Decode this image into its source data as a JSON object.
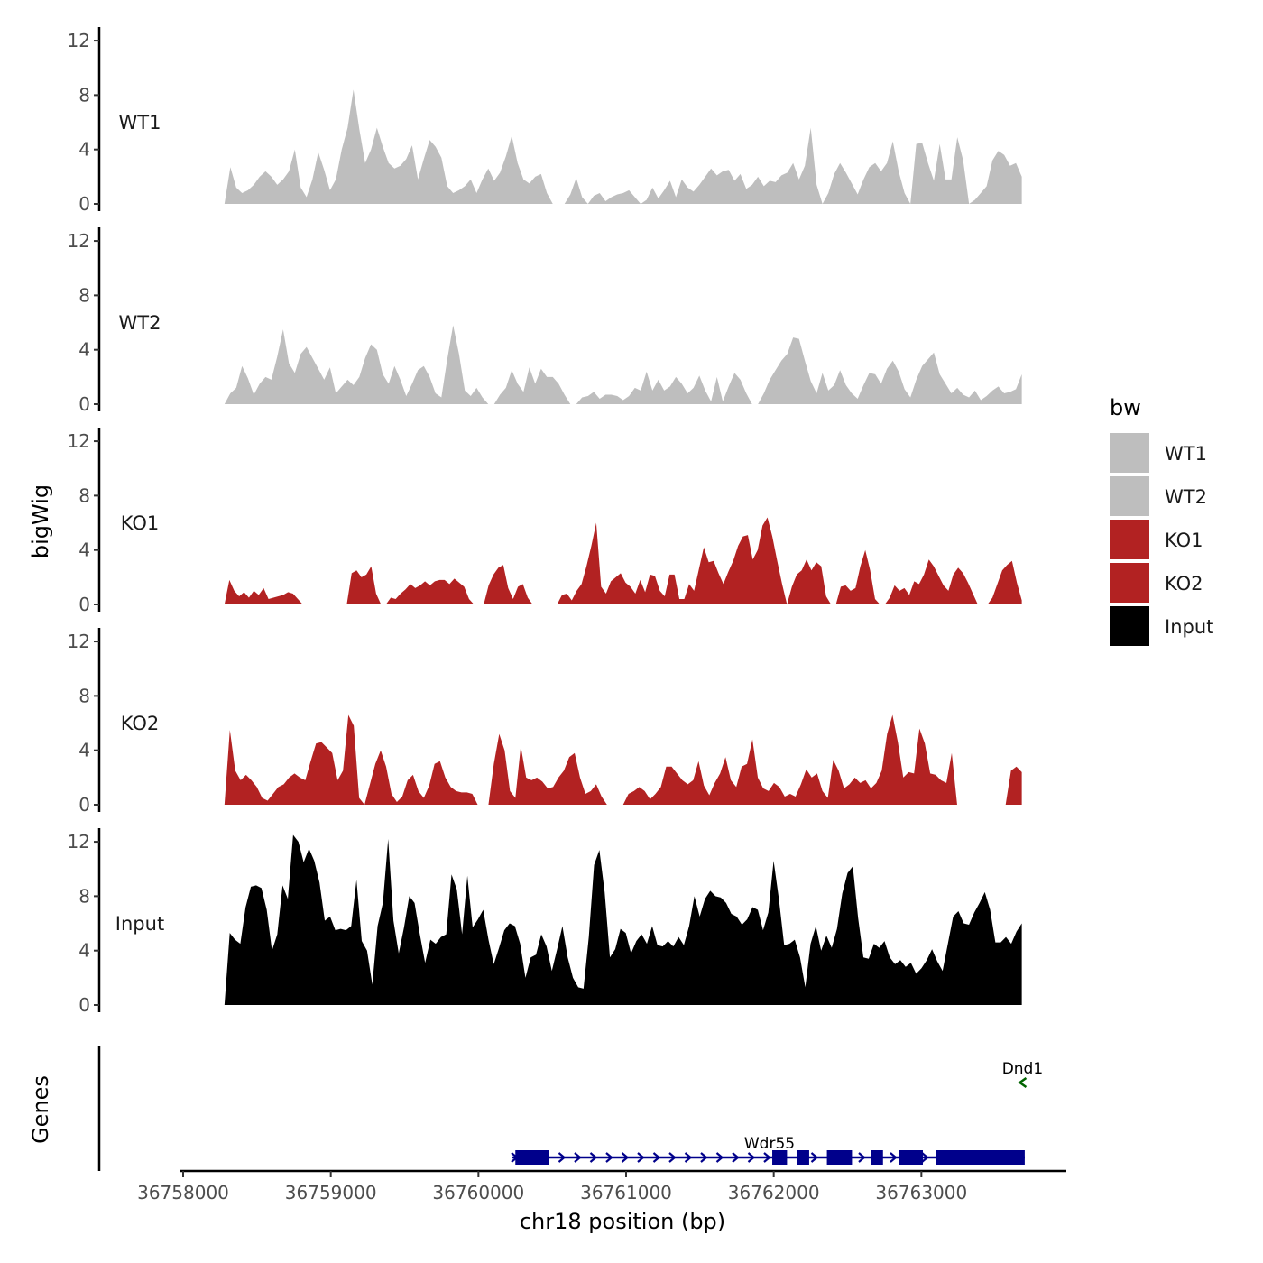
{
  "chart_data": {
    "type": "area",
    "title": "",
    "ylabel": "bigWig",
    "xlabel": "chr18 position (bp)",
    "xlim": [
      36758000,
      36764000
    ],
    "ylim": [
      0,
      13
    ],
    "y_ticks": [
      0,
      4,
      8,
      12
    ],
    "x_ticks": [
      36758000,
      36759000,
      36760000,
      36761000,
      36762000,
      36763000
    ],
    "x_tick_labels": [
      "36758000",
      "36759000",
      "36760000",
      "36761000",
      "36762000",
      "36763000"
    ],
    "x_range_data": [
      36758280,
      36763680
    ],
    "legend": {
      "title": "bw",
      "position": "right",
      "entries": [
        {
          "label": "WT1",
          "color": "#BEBEBE"
        },
        {
          "label": "WT2",
          "color": "#BEBEBE"
        },
        {
          "label": "KO1",
          "color": "#B22222"
        },
        {
          "label": "KO2",
          "color": "#B22222"
        },
        {
          "label": "Input",
          "color": "#000000"
        }
      ]
    },
    "series": [
      {
        "name": "WT1",
        "color": "#BEBEBE",
        "values": [
          0,
          2.7,
          1.2,
          0.8,
          1.0,
          1.4,
          2.0,
          2.4,
          2.0,
          1.4,
          1.8,
          2.4,
          4.0,
          1.2,
          0.5,
          1.8,
          3.8,
          2.5,
          1.0,
          1.8,
          4.0,
          5.6,
          8.4,
          5.5,
          3.0,
          4.0,
          5.6,
          4.2,
          3.0,
          2.6,
          2.8,
          3.3,
          4.3,
          1.8,
          3.3,
          4.7,
          4.2,
          3.4,
          1.3,
          0.8,
          1.0,
          1.3,
          1.8,
          0.8,
          1.8,
          2.6,
          1.7,
          2.3,
          3.5,
          5.0,
          3.0,
          1.8,
          1.5,
          2.0,
          2.2,
          0.8,
          0,
          0,
          0,
          0.7,
          1.9,
          0.5,
          0,
          0.6,
          0.8,
          0.2,
          0.5,
          0.7,
          0.8,
          1.0,
          0.5,
          0,
          0.3,
          1.2,
          0.4,
          1.0,
          1.7,
          0.5,
          1.8,
          1.2,
          0.9,
          1.4,
          2.0,
          2.6,
          2.1,
          2.4,
          2.5,
          1.7,
          2.2,
          1.1,
          1.4,
          2.0,
          1.3,
          1.7,
          1.6,
          2.1,
          2.3,
          3.0,
          1.8,
          2.8,
          5.6,
          1.4,
          0,
          0.8,
          2.2,
          3.0,
          2.3,
          1.5,
          0.7,
          1.8,
          2.7,
          3.0,
          2.4,
          3.0,
          4.6,
          2.4,
          0.8,
          0,
          4.4,
          4.5,
          3.0,
          1.7,
          4.4,
          1.8,
          1.8,
          4.9,
          3.2,
          0,
          0.3,
          0.8,
          1.3,
          3.2,
          3.9,
          3.6,
          2.8,
          3.0,
          2.0
        ]
      },
      {
        "name": "WT2",
        "color": "#BEBEBE",
        "values": [
          0,
          0.8,
          1.2,
          2.8,
          1.9,
          0.7,
          1.5,
          2.0,
          1.8,
          3.5,
          5.5,
          3.0,
          2.3,
          3.7,
          4.2,
          3.4,
          2.6,
          1.8,
          2.7,
          0.8,
          1.3,
          1.8,
          1.4,
          2.0,
          3.4,
          4.4,
          4.0,
          2.2,
          1.5,
          2.8,
          1.8,
          0.6,
          1.5,
          2.5,
          2.8,
          2.0,
          0.8,
          0.5,
          3.3,
          5.8,
          3.7,
          1.0,
          0.6,
          1.2,
          0.5,
          0,
          0,
          0.7,
          1.2,
          2.5,
          1.5,
          0.9,
          2.7,
          1.5,
          2.6,
          2.0,
          2.0,
          1.5,
          0.7,
          0,
          0,
          0.5,
          0.6,
          0.9,
          0.4,
          0.7,
          0.7,
          0.6,
          0.3,
          0.6,
          1.2,
          1.0,
          2.4,
          1.0,
          1.8,
          1.0,
          1.3,
          2.0,
          1.5,
          0.8,
          1.2,
          2.1,
          1.0,
          0.2,
          2.0,
          0.2,
          1.3,
          2.3,
          1.8,
          0.8,
          0,
          0,
          0.8,
          1.8,
          2.5,
          3.2,
          3.7,
          4.9,
          4.8,
          3.2,
          1.7,
          0.8,
          2.3,
          1.0,
          1.4,
          2.5,
          1.4,
          0.8,
          0.4,
          1.4,
          2.3,
          2.2,
          1.5,
          2.6,
          3.2,
          2.4,
          1.1,
          0.5,
          1.8,
          2.8,
          3.3,
          3.8,
          2.2,
          1.5,
          0.8,
          1.2,
          0.7,
          0.5,
          1.0,
          0.3,
          0.6,
          1.0,
          1.3,
          0.8,
          0.9,
          1.1,
          2.2
        ]
      },
      {
        "name": "KO1",
        "color": "#B22222",
        "values": [
          0,
          1.8,
          1.0,
          0.6,
          0.9,
          0.5,
          1.0,
          0.7,
          1.2,
          0.4,
          0.5,
          0.6,
          0.7,
          0.9,
          0.8,
          0.4,
          0,
          0,
          0,
          0,
          0,
          0,
          0,
          0,
          0,
          0,
          2.3,
          2.5,
          2.0,
          2.2,
          2.8,
          0.8,
          0,
          0,
          0.5,
          0.4,
          0.8,
          1.1,
          1.5,
          1.2,
          1.4,
          1.7,
          1.4,
          1.7,
          1.8,
          1.8,
          1.5,
          1.9,
          1.6,
          1.3,
          0.4,
          0,
          0,
          0,
          1.4,
          2.2,
          2.7,
          2.9,
          1.2,
          0.4,
          1.3,
          1.5,
          0.5,
          0,
          0,
          0,
          0,
          0,
          0,
          0.7,
          0.8,
          0.3,
          1.0,
          1.5,
          2.8,
          4.3,
          6.0,
          1.3,
          0.8,
          1.7,
          2.0,
          2.3,
          1.6,
          1.3,
          0.8,
          1.8,
          0.9,
          2.2,
          2.1,
          1.0,
          0.6,
          2.2,
          2.2,
          0.4,
          0.4,
          1.5,
          1.0,
          2.6,
          4.2,
          3.1,
          3.2,
          2.3,
          1.5,
          2.4,
          3.2,
          4.3,
          5.0,
          5.1,
          3.3,
          4.0,
          5.8,
          6.4,
          5.0,
          3.2,
          1.5,
          0,
          1.3,
          2.2,
          2.5,
          3.3,
          2.5,
          3.1,
          2.8,
          0.6,
          0,
          0,
          1.3,
          1.4,
          1.0,
          1.2,
          2.8,
          4.0,
          2.5,
          0.4,
          0,
          0,
          0.5,
          1.4,
          1.0,
          1.2,
          0.7,
          1.7,
          1.5,
          2.2,
          3.3,
          2.8,
          2.1,
          1.4,
          1.0,
          2.2,
          2.7,
          2.3,
          1.6,
          0.8,
          0,
          0,
          0,
          0.5,
          1.5,
          2.5,
          2.9,
          3.2,
          1.6,
          0.3
        ]
      },
      {
        "name": "KO2",
        "color": "#B22222",
        "values": [
          0,
          5.5,
          2.5,
          1.8,
          2.2,
          1.8,
          1.3,
          0.5,
          0.3,
          0.8,
          1.3,
          1.5,
          2.0,
          2.3,
          2.0,
          1.8,
          3.2,
          4.5,
          4.6,
          4.2,
          3.8,
          1.8,
          2.5,
          6.6,
          5.8,
          0.5,
          0,
          1.5,
          3.0,
          4.0,
          2.8,
          0.8,
          0.2,
          0.6,
          1.8,
          2.2,
          1.0,
          0.5,
          1.4,
          3.0,
          3.2,
          2.0,
          1.3,
          1.0,
          0.9,
          0.9,
          0.8,
          0,
          0,
          0,
          3.0,
          5.2,
          4.0,
          1.0,
          0.5,
          4.3,
          2.0,
          1.8,
          2.0,
          1.7,
          1.2,
          1.3,
          2.0,
          2.5,
          3.5,
          3.8,
          2.0,
          0.8,
          1.0,
          1.5,
          0.6,
          0,
          0,
          0,
          0,
          0.8,
          1.0,
          1.3,
          1.0,
          0.4,
          0.8,
          1.3,
          2.8,
          2.8,
          2.3,
          1.8,
          1.5,
          1.8,
          3.2,
          1.4,
          0.7,
          1.6,
          2.3,
          3.5,
          1.8,
          1.3,
          2.8,
          3.0,
          4.8,
          2.0,
          1.2,
          1.0,
          1.6,
          1.3,
          0.6,
          0.8,
          0.6,
          1.5,
          2.6,
          2.0,
          2.3,
          1.0,
          0.5,
          3.3,
          2.5,
          1.2,
          1.5,
          2.0,
          1.6,
          1.8,
          1.2,
          1.6,
          2.5,
          5.2,
          6.6,
          4.6,
          2.0,
          2.4,
          2.3,
          5.6,
          4.5,
          2.3,
          2.2,
          1.8,
          1.6,
          3.8,
          0,
          0,
          0,
          0,
          0,
          0,
          0,
          0,
          0,
          0,
          2.5,
          2.8,
          2.4
        ]
      },
      {
        "name": "Input",
        "color": "#000000",
        "values": [
          0,
          5.3,
          4.8,
          4.5,
          7.2,
          8.7,
          8.8,
          8.6,
          7.0,
          4.0,
          5.2,
          8.8,
          7.8,
          12.5,
          12.0,
          10.5,
          11.5,
          10.6,
          9.0,
          6.2,
          6.5,
          5.5,
          5.6,
          5.5,
          5.8,
          9.2,
          4.7,
          4.0,
          1.5,
          5.8,
          7.5,
          12.2,
          6.2,
          3.8,
          5.7,
          8.0,
          7.5,
          5.2,
          3.1,
          4.8,
          4.5,
          5.0,
          5.2,
          9.6,
          8.5,
          5.2,
          9.5,
          5.7,
          6.3,
          7.0,
          4.8,
          3.0,
          4.2,
          5.5,
          6.0,
          5.8,
          4.5,
          2.0,
          3.5,
          3.7,
          5.2,
          4.3,
          2.5,
          4.1,
          5.8,
          3.5,
          2.0,
          1.3,
          1.2,
          5.0,
          10.3,
          11.4,
          8.3,
          3.5,
          4.1,
          5.6,
          5.3,
          3.8,
          4.7,
          5.2,
          4.5,
          5.8,
          4.4,
          4.3,
          4.7,
          4.3,
          5.0,
          4.4,
          5.8,
          8.0,
          6.5,
          7.8,
          8.4,
          8.0,
          7.9,
          7.5,
          6.7,
          6.5,
          5.9,
          6.3,
          7.2,
          7.0,
          5.5,
          6.8,
          10.6,
          7.8,
          4.4,
          4.5,
          4.8,
          3.5,
          1.3,
          4.5,
          5.8,
          4.0,
          5.1,
          4.2,
          5.6,
          8.2,
          9.7,
          10.2,
          6.4,
          3.5,
          3.4,
          4.5,
          4.2,
          4.7,
          3.5,
          3.0,
          3.3,
          2.8,
          3.1,
          2.3,
          2.7,
          3.3,
          4.1,
          3.2,
          2.5,
          4.5,
          6.5,
          6.9,
          6.0,
          5.9,
          6.8,
          7.5,
          8.3,
          7.0,
          4.6,
          4.6,
          5.0,
          4.5,
          5.4,
          6.0
        ]
      }
    ],
    "genes": {
      "ylabel": "Genes",
      "items": [
        {
          "name": "Wdr55",
          "strand": "+",
          "color": "#00008B",
          "start": 36760230,
          "end": 36763700,
          "exons": [
            [
              36760250,
              36760480
            ],
            [
              36761990,
              36762090
            ],
            [
              36762160,
              36762240
            ],
            [
              36762360,
              36762530
            ],
            [
              36762660,
              36762740
            ],
            [
              36762850,
              36763010
            ],
            [
              36763100,
              36763700
            ]
          ]
        },
        {
          "name": "Dnd1",
          "strand": "-",
          "color": "#006400",
          "start": 36763660,
          "end": 36763710,
          "exons": []
        }
      ]
    }
  }
}
